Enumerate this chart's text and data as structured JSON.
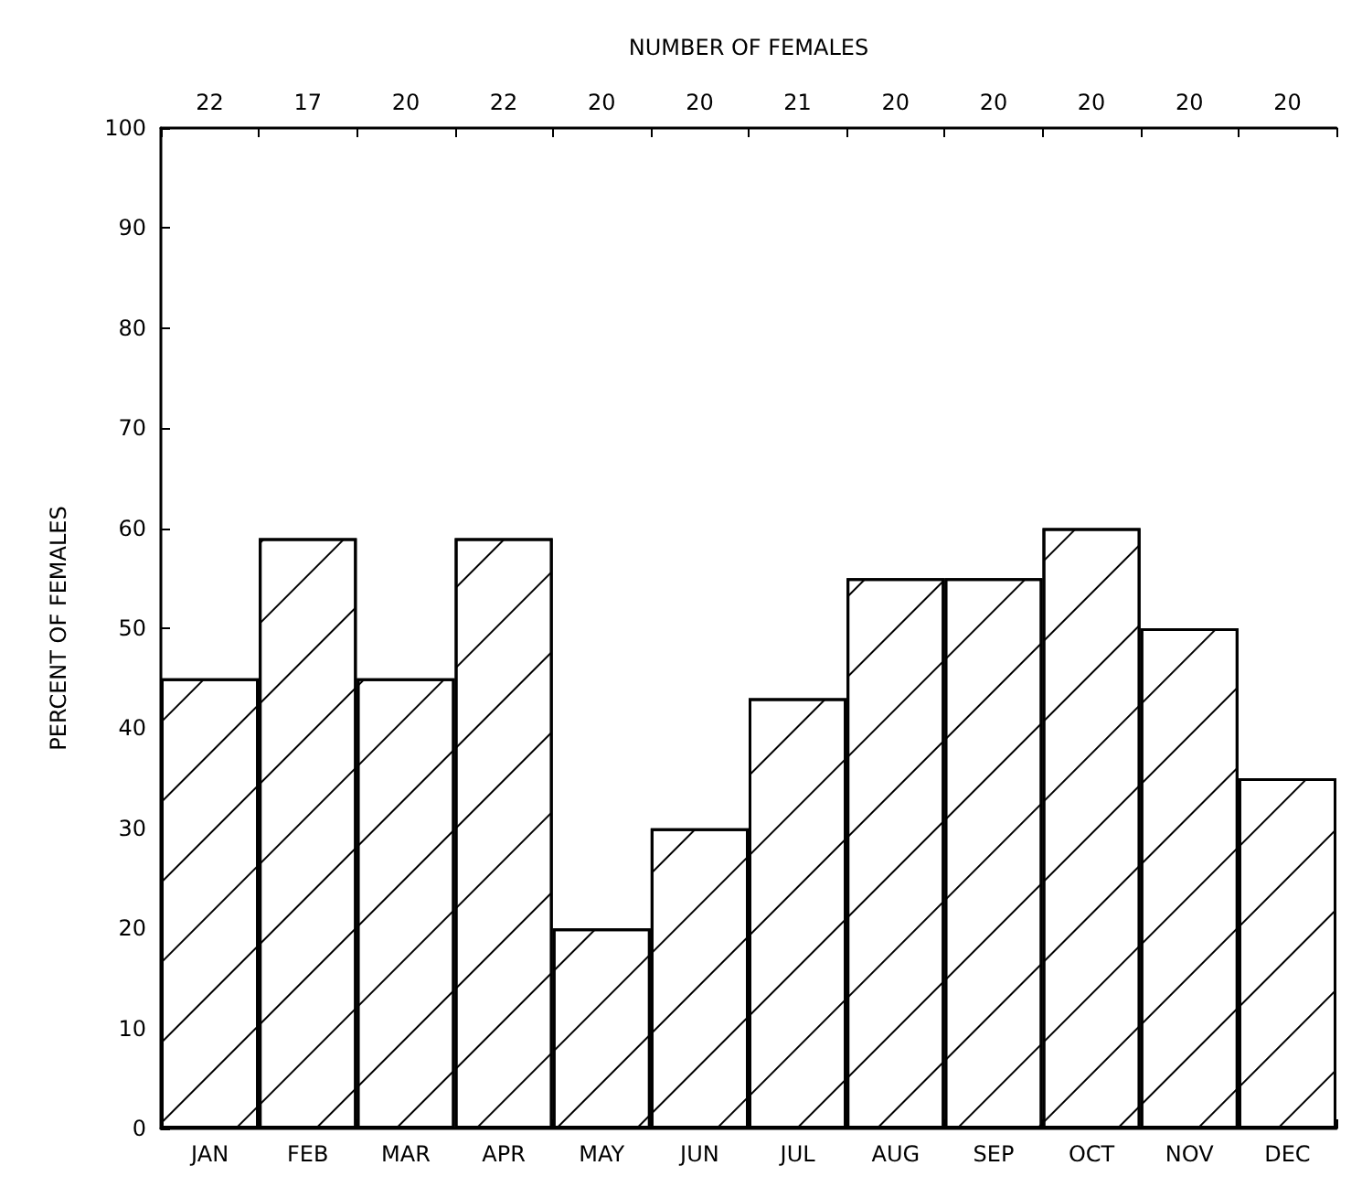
{
  "chart_data": {
    "type": "bar",
    "x2label": "NUMBER OF FEMALES",
    "ylabel": "PERCENT OF FEMALES",
    "categories": [
      "JAN",
      "FEB",
      "MAR",
      "APR",
      "MAY",
      "JUN",
      "JUL",
      "AUG",
      "SEP",
      "OCT",
      "NOV",
      "DEC"
    ],
    "values": [
      45,
      59,
      45,
      59,
      20,
      30,
      43,
      55,
      55,
      60,
      50,
      35
    ],
    "color": "#000000",
    "ylim": [
      0,
      100
    ],
    "yticks": [
      0,
      10,
      20,
      30,
      40,
      50,
      60,
      70,
      80,
      90,
      100
    ],
    "grid": false,
    "annotations": [
      "22",
      "17",
      "20",
      "22",
      "20",
      "20",
      "21",
      "20",
      "20",
      "20",
      "20",
      "20"
    ]
  }
}
